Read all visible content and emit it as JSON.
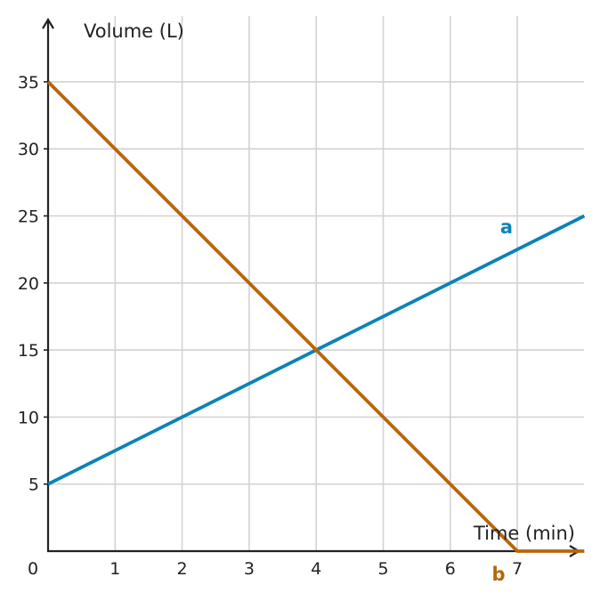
{
  "chart_data": {
    "type": "line",
    "xlabel": "Time (min)",
    "ylabel": "Volume (L)",
    "xlim": [
      0,
      8
    ],
    "ylim": [
      0,
      35
    ],
    "x_ticks": [
      "1",
      "2",
      "3",
      "4",
      "5",
      "6",
      "7"
    ],
    "y_ticks": [
      "5",
      "10",
      "15",
      "20",
      "25",
      "30",
      "35"
    ],
    "origin_label": "0",
    "grid": true,
    "series": [
      {
        "name": "a",
        "color": "#0a84b6",
        "points": [
          [
            0,
            5
          ],
          [
            8,
            25
          ]
        ]
      },
      {
        "name": "b",
        "color": "#b8650b",
        "points": [
          [
            0,
            35
          ],
          [
            7,
            0
          ],
          [
            8,
            0
          ]
        ]
      }
    ]
  }
}
